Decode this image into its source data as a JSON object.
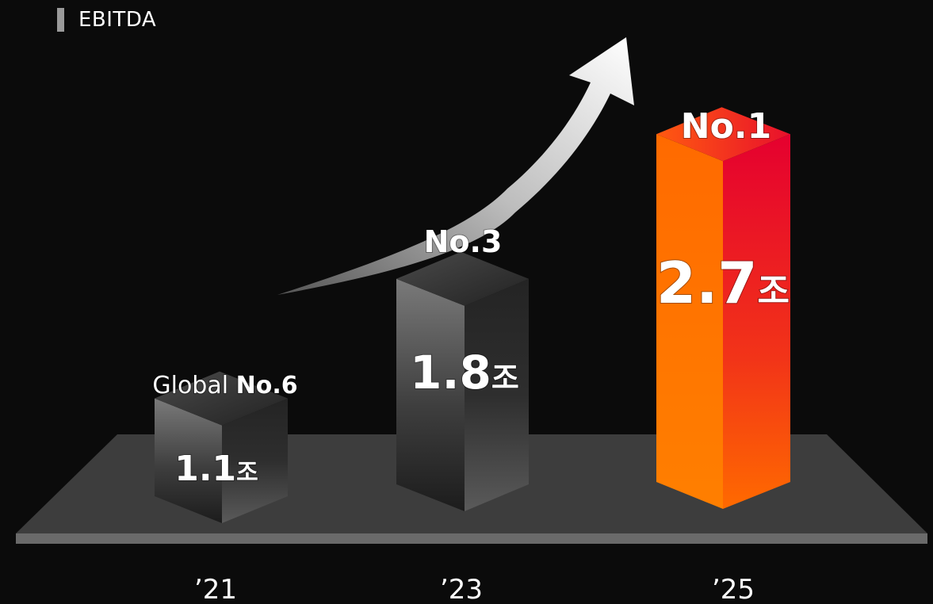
{
  "title": "EBITDA",
  "chart_data": {
    "type": "bar",
    "title": "EBITDA",
    "xlabel": "",
    "ylabel": "",
    "ylim": [
      0,
      3
    ],
    "categories": [
      "’21",
      "’23",
      "’25"
    ],
    "values": [
      1.1,
      1.8,
      2.7
    ],
    "value_labels": [
      "1.1",
      "1.8",
      "2.7"
    ],
    "unit": "조",
    "rank_prefix": [
      "Global",
      "",
      ""
    ],
    "rank_labels": [
      "No.6",
      "No.3",
      "No.1"
    ],
    "grid": false,
    "legend": "none"
  },
  "colors": {
    "background": "#0b0b0b",
    "platform": "#3d3d3d",
    "gray_bar_front": "#6c6c6c",
    "highlight_front": "#ff7a00",
    "highlight_side": "#e5102e",
    "arrow": "#e9e9e9"
  }
}
